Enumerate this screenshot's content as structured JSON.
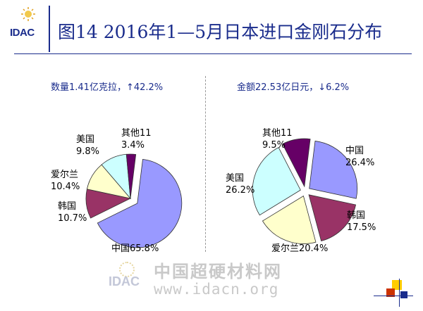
{
  "logo": {
    "text": "IDAC"
  },
  "title": "图14  2016年1—5月日本进口金刚石分布",
  "left_summary": "数量1.41亿克拉，↑42.2%",
  "right_summary": "金额22.53亿日元，↓6.2%",
  "watermark": {
    "logo_text": "IDAC",
    "line1": "中国超硬材料网",
    "line2": "www.idacn.org"
  },
  "colors": {
    "title": "#1a2c8c",
    "china": "#9999ff",
    "korea": "#993366",
    "france": "#ffffcc",
    "usa": "#ccffff",
    "other": "#660066"
  },
  "chart_data": [
    {
      "type": "pie",
      "title": "数量1.41亿克拉，↑42.2%",
      "categories": [
        "中国",
        "韩国",
        "爱尔兰",
        "美国",
        "其他11"
      ],
      "values": [
        65.8,
        10.7,
        10.4,
        9.8,
        3.4
      ],
      "labels": [
        "中国65.8%",
        "韩国\n10.7%",
        "爱尔兰\n10.4%",
        "美国\n9.8%",
        "其他11\n3.4%"
      ],
      "exploded": [
        "中国"
      ],
      "colors": [
        "#9999ff",
        "#993366",
        "#ffffcc",
        "#ccffff",
        "#660066"
      ]
    },
    {
      "type": "pie",
      "title": "金额22.53亿日元，↓6.2%",
      "categories": [
        "中国",
        "韩国",
        "爱尔兰",
        "美国",
        "其他11"
      ],
      "values": [
        26.4,
        17.5,
        20.4,
        26.2,
        9.5
      ],
      "labels": [
        "中国\n26.4%",
        "韩国\n17.5%",
        "爱尔兰20.4%",
        "美国\n26.2%",
        "其他11\n9.5%"
      ],
      "exploded": [
        "中国",
        "韩国",
        "爱尔兰",
        "美国",
        "其他11"
      ],
      "colors": [
        "#9999ff",
        "#993366",
        "#ffffcc",
        "#ccffff",
        "#660066"
      ]
    }
  ]
}
